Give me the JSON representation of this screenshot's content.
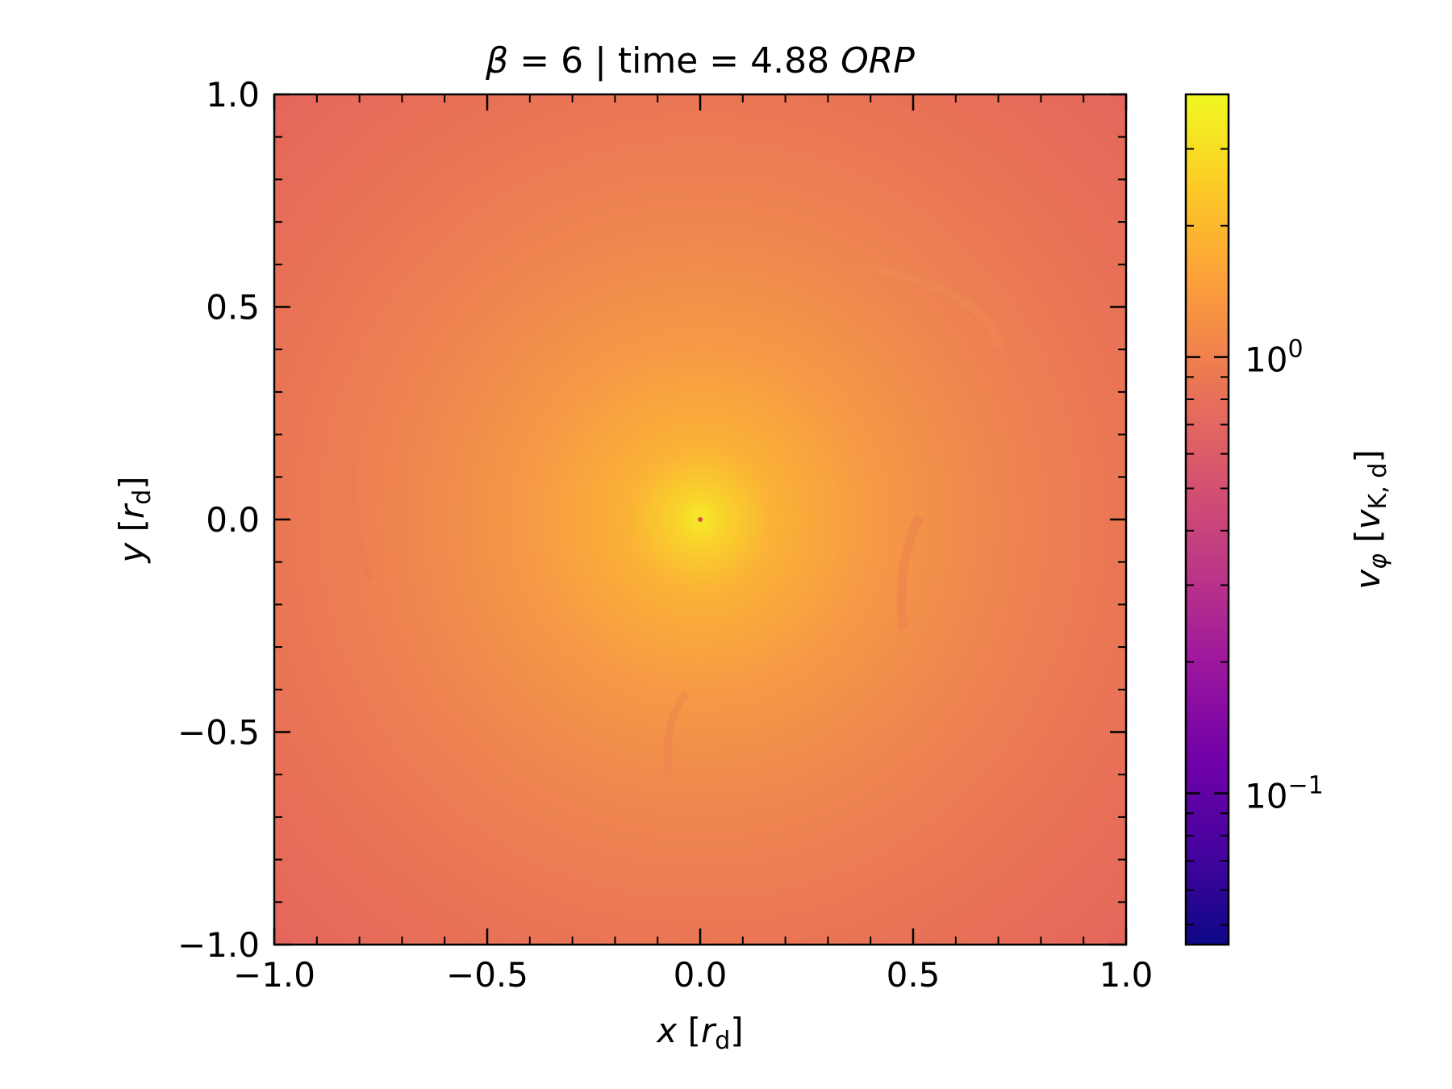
{
  "chart_data": {
    "type": "heatmap",
    "title": {
      "beta_symbol": "β",
      "beta_text": " = 6 | time = 4.88 ",
      "unit": "ORP"
    },
    "xlabel": {
      "var": "x",
      "pre": " [",
      "sub_var": "r",
      "sub": "d",
      "post": "]"
    },
    "ylabel": {
      "var": "y",
      "pre": " [",
      "sub_var": "r",
      "sub": "d",
      "post": "]"
    },
    "xlim": [
      -1.0,
      1.0
    ],
    "ylim": [
      -1.0,
      1.0
    ],
    "x_ticks": [
      {
        "value": -1.0,
        "label": "−1.0"
      },
      {
        "value": -0.5,
        "label": "−0.5"
      },
      {
        "value": 0.0,
        "label": "0.0"
      },
      {
        "value": 0.5,
        "label": "0.5"
      },
      {
        "value": 1.0,
        "label": "1.0"
      }
    ],
    "y_ticks": [
      {
        "value": -1.0,
        "label": "−1.0"
      },
      {
        "value": -0.5,
        "label": "−0.5"
      },
      {
        "value": 0.0,
        "label": "0.0"
      },
      {
        "value": 0.5,
        "label": "0.5"
      },
      {
        "value": 1.0,
        "label": "1.0"
      }
    ],
    "colormap": "plasma",
    "colorbar": {
      "scale": "log",
      "range": [
        0.045,
        4.0
      ],
      "label": {
        "var": "v",
        "var_sub": "φ",
        "pre": " [",
        "unit_var": "v",
        "unit_sub": "K, d",
        "post": "]"
      },
      "ticks": [
        {
          "value": 1.0,
          "base": "10",
          "exp": "0"
        },
        {
          "value": 0.1,
          "base": "10",
          "exp": "−1"
        }
      ]
    },
    "field": {
      "center_value": 4.0,
      "edge_value": 1.0,
      "corner_value": 0.9
    },
    "colors": {
      "plasma_stops": [
        "#0d0887",
        "#46039f",
        "#7201a8",
        "#9c179e",
        "#bd3786",
        "#d8576b",
        "#ed7953",
        "#fb9f3a",
        "#fdca26",
        "#f0f921"
      ]
    }
  }
}
